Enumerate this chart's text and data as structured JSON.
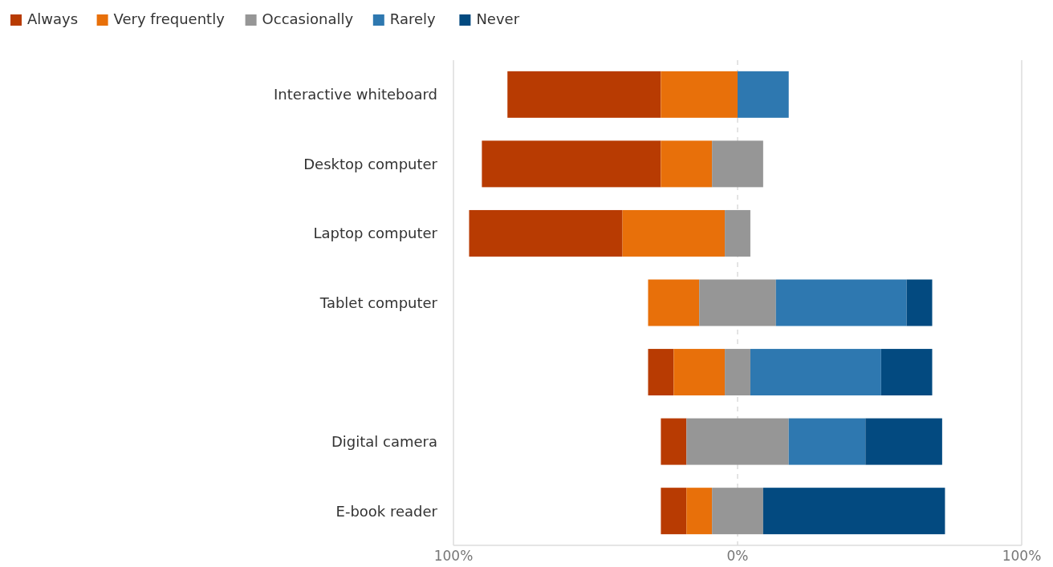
{
  "chart_data": {
    "type": "bar",
    "orientation": "horizontal",
    "categories": [
      "Interactive whiteboard",
      "Desktop computer",
      "Laptop computer",
      "Tablet computer",
      null,
      "Digital camera",
      "E-book reader"
    ],
    "series": [
      {
        "name": "Always",
        "color": "#b83b02",
        "values": [
          54,
          63,
          54,
          null,
          9,
          9,
          9
        ],
        "base": [
          -81,
          -90,
          -94.5,
          null,
          -31.5,
          -27,
          -27
        ]
      },
      {
        "name": "Very frequently",
        "color": "#e8700a",
        "values": [
          27,
          18,
          36,
          18,
          18,
          null,
          9
        ],
        "base": [
          -27,
          -27,
          -40.5,
          -31.5,
          -22.5,
          null,
          -18
        ]
      },
      {
        "name": "Occasionally",
        "color": "#969696",
        "values": [
          null,
          18,
          9,
          27,
          9,
          36,
          18
        ],
        "base": [
          null,
          -9,
          -4.5,
          -13.5,
          -4.5,
          -18,
          -9
        ]
      },
      {
        "name": "Rarely",
        "color": "#2e78b0",
        "values": [
          18,
          null,
          null,
          46,
          46,
          27,
          null
        ],
        "base": [
          0,
          null,
          null,
          13.5,
          4.5,
          18,
          null
        ]
      },
      {
        "name": "Never",
        "color": "#034a80",
        "values": [
          null,
          null,
          null,
          9,
          18,
          27,
          64
        ],
        "base": [
          null,
          null,
          null,
          59.5,
          50.5,
          45,
          9
        ]
      }
    ],
    "xlim": [
      -100,
      100
    ],
    "xticks": [
      {
        "value": -100,
        "label": "100%"
      },
      {
        "value": 0,
        "label": "0%"
      },
      {
        "value": 100,
        "label": "100%"
      }
    ],
    "grid": "x",
    "legend": "top left"
  }
}
